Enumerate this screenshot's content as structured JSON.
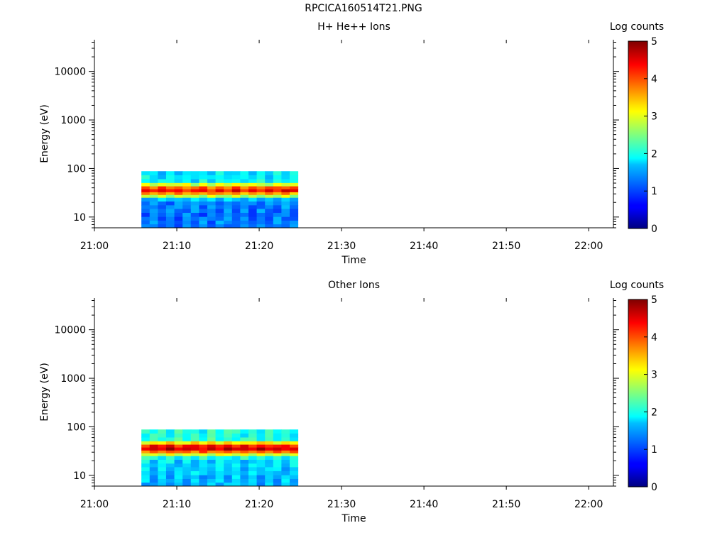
{
  "main_title": "RPCICA160514T21.PNG",
  "chart_data": [
    {
      "type": "heatmap",
      "title": "H+ He++ Ions",
      "xlabel": "Time",
      "ylabel": "Energy (eV)",
      "y_scale": "log",
      "ylim": [
        6,
        45000
      ],
      "xlim": [
        "21:00",
        "22:03"
      ],
      "x_ticks": [
        "21:00",
        "21:10",
        "21:20",
        "21:30",
        "21:40",
        "21:50",
        "22:00"
      ],
      "y_ticks": [
        "10",
        "100",
        "1000",
        "10000"
      ],
      "data_time_range": [
        "21:05.7",
        "21:24.7"
      ],
      "data_energy_range": [
        6,
        88
      ],
      "colorbar": {
        "label": "Log counts",
        "range": [
          0,
          5
        ],
        "ticks": [
          "0",
          "1",
          "2",
          "3",
          "4",
          "5"
        ]
      },
      "energy_profile": [
        {
          "energy": 80,
          "log_counts": 1.75
        },
        {
          "energy": 66,
          "log_counts": 1.8
        },
        {
          "energy": 55,
          "log_counts": 1.85
        },
        {
          "energy": 46,
          "log_counts": 2.9
        },
        {
          "energy": 40,
          "log_counts": 3.9
        },
        {
          "energy": 35,
          "log_counts": 4.3
        },
        {
          "energy": 30,
          "log_counts": 3.6
        },
        {
          "energy": 27,
          "log_counts": 2.8
        },
        {
          "energy": 23,
          "log_counts": 1.6
        },
        {
          "energy": 19,
          "log_counts": 1.3
        },
        {
          "energy": 16,
          "log_counts": 1.25
        },
        {
          "energy": 13.5,
          "log_counts": 1.2
        },
        {
          "energy": 11,
          "log_counts": 1.15
        },
        {
          "energy": 9.2,
          "log_counts": 1.2
        },
        {
          "energy": 7.7,
          "log_counts": 1.2
        },
        {
          "energy": 6.5,
          "log_counts": 1.15
        }
      ]
    },
    {
      "type": "heatmap",
      "title": "Other Ions",
      "xlabel": "Time",
      "ylabel": "Energy (eV)",
      "y_scale": "log",
      "ylim": [
        6,
        45000
      ],
      "xlim": [
        "21:00",
        "22:03"
      ],
      "x_ticks": [
        "21:00",
        "21:10",
        "21:20",
        "21:30",
        "21:40",
        "21:50",
        "22:00"
      ],
      "y_ticks": [
        "10",
        "100",
        "1000",
        "10000"
      ],
      "data_time_range": [
        "21:05.7",
        "21:24.7"
      ],
      "data_energy_range": [
        6,
        88
      ],
      "colorbar": {
        "label": "Log counts",
        "range": [
          0,
          5
        ],
        "ticks": [
          "0",
          "1",
          "2",
          "3",
          "4",
          "5"
        ]
      },
      "energy_profile": [
        {
          "energy": 80,
          "log_counts": 2.0
        },
        {
          "energy": 66,
          "log_counts": 2.0
        },
        {
          "energy": 55,
          "log_counts": 2.1
        },
        {
          "energy": 46,
          "log_counts": 3.2
        },
        {
          "energy": 40,
          "log_counts": 4.3
        },
        {
          "energy": 35,
          "log_counts": 4.6
        },
        {
          "energy": 30,
          "log_counts": 3.9
        },
        {
          "energy": 27,
          "log_counts": 3.0
        },
        {
          "energy": 23,
          "log_counts": 2.0
        },
        {
          "energy": 19,
          "log_counts": 1.7
        },
        {
          "energy": 16,
          "log_counts": 1.65
        },
        {
          "energy": 13.5,
          "log_counts": 1.6
        },
        {
          "energy": 11,
          "log_counts": 1.6
        },
        {
          "energy": 9.2,
          "log_counts": 1.55
        },
        {
          "energy": 7.7,
          "log_counts": 1.5
        },
        {
          "energy": 6.5,
          "log_counts": 1.5
        }
      ]
    }
  ]
}
